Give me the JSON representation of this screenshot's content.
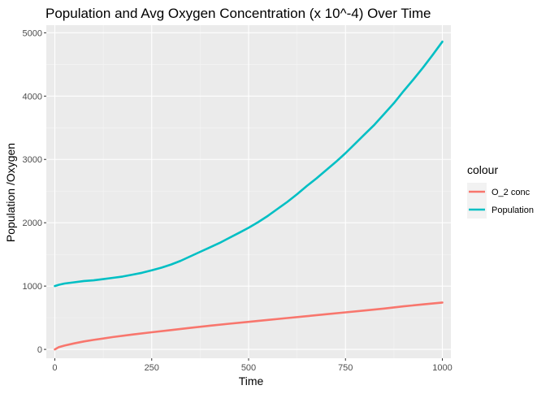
{
  "chart_data": {
    "type": "line",
    "title": "Population and Avg Oxygen Concentration (x 10^-4) Over Time",
    "xlabel": "Time",
    "ylabel": "Population /Oxygen",
    "xlim": [
      -22,
      1022
    ],
    "ylim": [
      -140,
      5120
    ],
    "x_ticks": [
      0,
      250,
      500,
      750,
      1000
    ],
    "x_tick_labels": [
      "0",
      "250",
      "500",
      "750",
      "1000"
    ],
    "y_ticks": [
      0,
      1000,
      2000,
      3000,
      4000,
      5000
    ],
    "y_tick_labels": [
      "0",
      "1000",
      "2000",
      "3000",
      "4000",
      "5000"
    ],
    "grid": true,
    "legend_position": "right",
    "legend_title": "colour",
    "colors": {
      "panel_background": "#ebebeb",
      "grid_major": "#ffffff",
      "grid_minor": "#f5f5f5"
    },
    "series": [
      {
        "name": "O_2 conc",
        "color": "#f8766d",
        "x": [
          0,
          10,
          25,
          50,
          75,
          100,
          150,
          200,
          250,
          300,
          350,
          400,
          450,
          500,
          550,
          600,
          650,
          700,
          750,
          800,
          850,
          900,
          950,
          1000
        ],
        "y": [
          0,
          35,
          60,
          95,
          125,
          150,
          195,
          235,
          270,
          305,
          340,
          375,
          405,
          435,
          465,
          495,
          525,
          555,
          585,
          615,
          645,
          680,
          710,
          740
        ]
      },
      {
        "name": "Population",
        "color": "#00bfc4",
        "x": [
          0,
          10,
          25,
          50,
          75,
          100,
          125,
          150,
          175,
          200,
          225,
          250,
          275,
          300,
          325,
          350,
          375,
          400,
          425,
          450,
          475,
          500,
          525,
          550,
          575,
          600,
          625,
          650,
          675,
          700,
          725,
          750,
          775,
          800,
          825,
          850,
          875,
          900,
          925,
          950,
          975,
          1000
        ],
        "y": [
          1000,
          1020,
          1040,
          1060,
          1080,
          1090,
          1110,
          1130,
          1150,
          1180,
          1210,
          1250,
          1290,
          1340,
          1400,
          1470,
          1540,
          1610,
          1680,
          1760,
          1840,
          1920,
          2010,
          2110,
          2220,
          2330,
          2450,
          2580,
          2700,
          2830,
          2960,
          3100,
          3250,
          3400,
          3550,
          3720,
          3890,
          4080,
          4260,
          4450,
          4650,
          4860
        ]
      }
    ]
  }
}
